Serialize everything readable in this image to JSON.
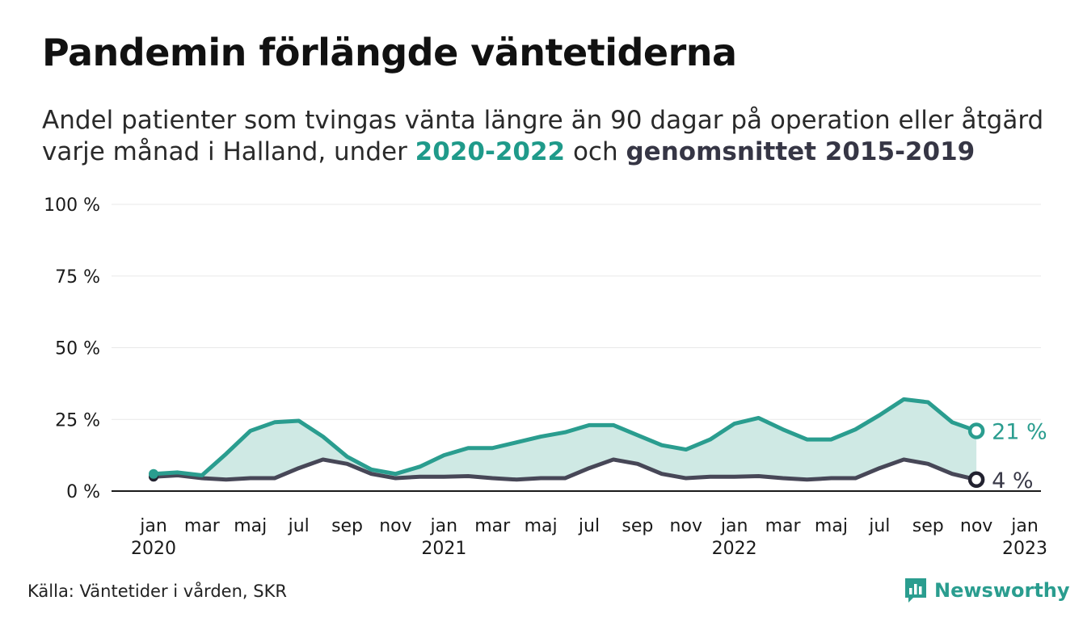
{
  "title": "Pandemin förlängde väntetiderna",
  "subtitle": {
    "line1": "Andel patienter som tvingas vänta längre än 90 dagar på operation eller åtgärd",
    "line2_prefix": "varje månad i Halland, under ",
    "highlight1": "2020-2022",
    "line2_mid": " och ",
    "highlight2": "genomsnittet 2015-2019"
  },
  "source": "Källa: Väntetider i vården, SKR",
  "brand": "Newsworthy",
  "colors": {
    "series_2020_2022": "#2a9d8f",
    "series_average": "#474757",
    "area_fill": "#cfe9e4",
    "grid": "#e8e8e8",
    "axis": "#1a1a1a"
  },
  "chart_data": {
    "type": "line",
    "x_start": "2020-01",
    "x_end": "2022-11",
    "xlim": [
      "2020-01",
      "2023-01"
    ],
    "ylim": [
      0,
      100
    ],
    "y_ticks": [
      "0 %",
      "25 %",
      "50 %",
      "75 %",
      "100 %"
    ],
    "x_ticks": [
      {
        "month": "jan",
        "year": "2020"
      },
      {
        "month": "mar",
        "year": ""
      },
      {
        "month": "maj",
        "year": ""
      },
      {
        "month": "jul",
        "year": ""
      },
      {
        "month": "sep",
        "year": ""
      },
      {
        "month": "nov",
        "year": ""
      },
      {
        "month": "jan",
        "year": "2021"
      },
      {
        "month": "mar",
        "year": ""
      },
      {
        "month": "maj",
        "year": ""
      },
      {
        "month": "jul",
        "year": ""
      },
      {
        "month": "sep",
        "year": ""
      },
      {
        "month": "nov",
        "year": ""
      },
      {
        "month": "jan",
        "year": "2022"
      },
      {
        "month": "mar",
        "year": ""
      },
      {
        "month": "maj",
        "year": ""
      },
      {
        "month": "jul",
        "year": ""
      },
      {
        "month": "sep",
        "year": ""
      },
      {
        "month": "nov",
        "year": ""
      },
      {
        "month": "jan",
        "year": "2023"
      }
    ],
    "grid": true,
    "fill_between": true,
    "series": [
      {
        "key": "2020-2022",
        "values": [
          6,
          6.5,
          5.5,
          13,
          21,
          24,
          24.5,
          19,
          12,
          7.5,
          6,
          8.5,
          12.5,
          15,
          15,
          17,
          19,
          20.5,
          23,
          23,
          19.5,
          16,
          14.5,
          18,
          23.5,
          25.5,
          21.5,
          18,
          18,
          21.5,
          26.5,
          32,
          31,
          24,
          21
        ],
        "end_label": "21 %"
      },
      {
        "key": "2015-2019",
        "values": [
          5,
          5.5,
          4.5,
          4,
          4.5,
          4.5,
          8,
          11,
          9.5,
          6,
          4.5,
          5,
          5,
          5.2,
          4.5,
          4,
          4.5,
          4.5,
          8,
          11,
          9.5,
          6,
          4.5,
          5,
          5,
          5.2,
          4.5,
          4,
          4.5,
          4.5,
          8,
          11,
          9.5,
          6,
          4
        ],
        "end_label": "4 %"
      }
    ]
  }
}
